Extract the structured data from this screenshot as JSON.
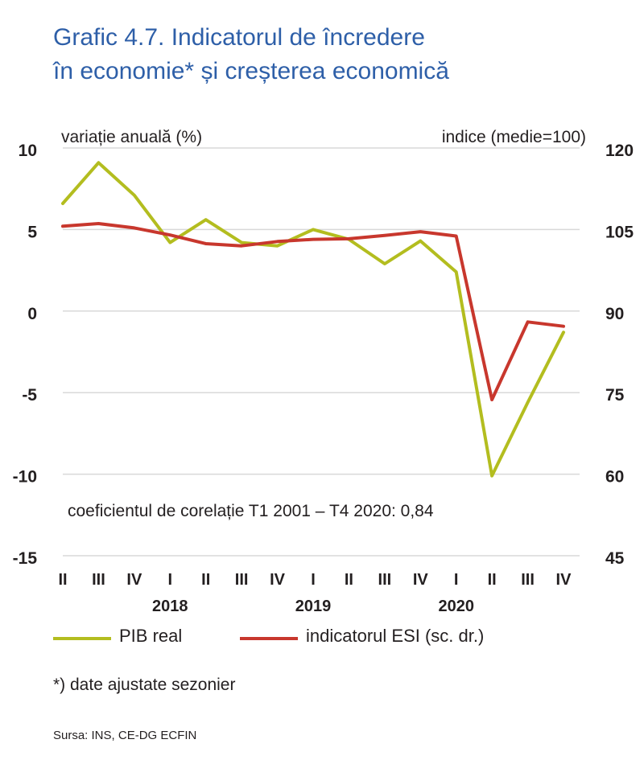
{
  "title_line1": "Grafic 4.7. Indicatorul  de încredere",
  "title_line2": "în economie* și creșterea economică",
  "chart_data": {
    "type": "line",
    "left_axis_label": "variație anuală (%)",
    "right_axis_label": "indice (medie=100)",
    "left_ylim": [
      -15,
      10
    ],
    "left_ticks": [
      "10",
      "5",
      "0",
      "-5",
      "-10",
      "-15"
    ],
    "right_ylim": [
      45,
      120
    ],
    "right_ticks": [
      "120",
      "105",
      "90",
      "75",
      "60",
      "45"
    ],
    "quarters": [
      "II",
      "III",
      "IV",
      "I",
      "II",
      "III",
      "IV",
      "I",
      "II",
      "III",
      "IV",
      "I",
      "II",
      "III",
      "IV"
    ],
    "years": [
      {
        "label": "2018",
        "at_index": 3
      },
      {
        "label": "2019",
        "at_index": 7
      },
      {
        "label": "2020",
        "at_index": 11
      }
    ],
    "grid": true,
    "annotation": "coeficientul de corelație T1  2001  – T4 2020:  0,84",
    "series": [
      {
        "name": "PIB real",
        "axis": "left",
        "color": "#b3bd1f",
        "values": [
          6.6,
          9.1,
          7.1,
          4.2,
          5.6,
          4.2,
          4.0,
          5.0,
          4.4,
          2.9,
          4.3,
          2.4,
          -10.1,
          -5.6,
          -1.3
        ]
      },
      {
        "name": "indicatorul ESI (sc. dr.)",
        "axis": "right",
        "color": "#c8372d",
        "values": [
          105.6,
          106.1,
          105.3,
          104.0,
          102.4,
          102.0,
          102.8,
          103.2,
          103.3,
          103.9,
          104.6,
          103.8,
          73.7,
          88.0,
          87.2
        ]
      }
    ]
  },
  "note": "*) date ajustate sezonier",
  "source": "Sursa: INS, CE-DG  ECFIN"
}
